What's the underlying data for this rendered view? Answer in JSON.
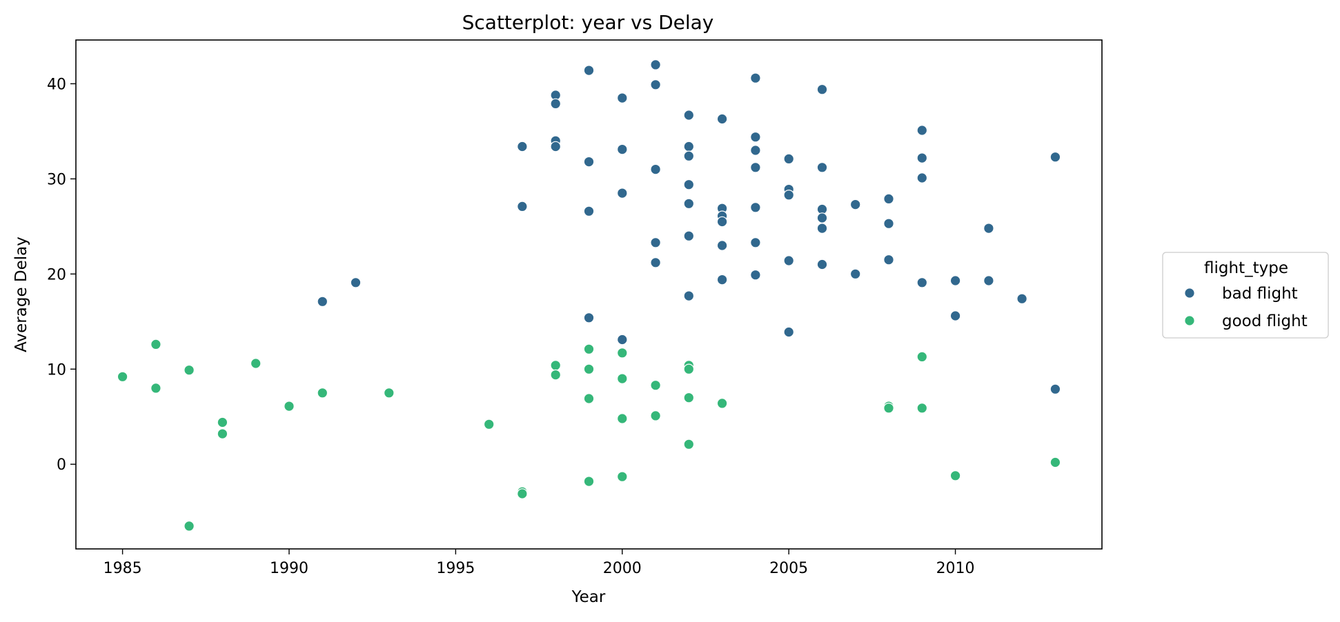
{
  "chart_data": {
    "type": "scatter",
    "title": "Scatterplot: year vs Delay",
    "xlabel": "Year",
    "ylabel": "Average Delay",
    "xlim": [
      1983.6,
      2014.4
    ],
    "ylim": [
      -8.9,
      44.6
    ],
    "xticks": [
      1985,
      1990,
      1995,
      2000,
      2005,
      2010
    ],
    "yticks": [
      0,
      10,
      20,
      30,
      40
    ],
    "grid": false,
    "legend": {
      "title": "flight_type",
      "placement": "right"
    },
    "series": [
      {
        "name": "bad flight",
        "color": "#31688e",
        "points": [
          [
            1991,
            17.1
          ],
          [
            1992,
            19.1
          ],
          [
            1997,
            33.4
          ],
          [
            1997,
            27.1
          ],
          [
            1998,
            38.8
          ],
          [
            1998,
            37.9
          ],
          [
            1998,
            34.0
          ],
          [
            1998,
            33.4
          ],
          [
            1999,
            41.4
          ],
          [
            1999,
            31.8
          ],
          [
            1999,
            26.6
          ],
          [
            1999,
            15.4
          ],
          [
            2000,
            38.5
          ],
          [
            2000,
            33.1
          ],
          [
            2000,
            28.5
          ],
          [
            2000,
            13.1
          ],
          [
            2001,
            42.0
          ],
          [
            2001,
            39.9
          ],
          [
            2001,
            31.0
          ],
          [
            2001,
            23.3
          ],
          [
            2001,
            21.2
          ],
          [
            2002,
            36.7
          ],
          [
            2002,
            33.4
          ],
          [
            2002,
            32.4
          ],
          [
            2002,
            29.4
          ],
          [
            2002,
            27.4
          ],
          [
            2002,
            24.0
          ],
          [
            2002,
            17.7
          ],
          [
            2003,
            36.3
          ],
          [
            2003,
            26.9
          ],
          [
            2003,
            26.1
          ],
          [
            2003,
            25.5
          ],
          [
            2003,
            23.0
          ],
          [
            2003,
            19.4
          ],
          [
            2004,
            40.6
          ],
          [
            2004,
            34.4
          ],
          [
            2004,
            33.0
          ],
          [
            2004,
            31.2
          ],
          [
            2004,
            27.0
          ],
          [
            2004,
            23.3
          ],
          [
            2004,
            19.9
          ],
          [
            2005,
            32.1
          ],
          [
            2005,
            28.9
          ],
          [
            2005,
            28.3
          ],
          [
            2005,
            21.4
          ],
          [
            2005,
            13.9
          ],
          [
            2006,
            39.4
          ],
          [
            2006,
            31.2
          ],
          [
            2006,
            26.8
          ],
          [
            2006,
            25.9
          ],
          [
            2006,
            24.8
          ],
          [
            2006,
            21.0
          ],
          [
            2007,
            27.3
          ],
          [
            2007,
            20.0
          ],
          [
            2008,
            27.9
          ],
          [
            2008,
            25.3
          ],
          [
            2008,
            21.5
          ],
          [
            2009,
            35.1
          ],
          [
            2009,
            32.2
          ],
          [
            2009,
            30.1
          ],
          [
            2009,
            19.1
          ],
          [
            2010,
            19.3
          ],
          [
            2010,
            15.6
          ],
          [
            2011,
            24.8
          ],
          [
            2011,
            19.3
          ],
          [
            2012,
            17.4
          ],
          [
            2013,
            32.3
          ],
          [
            2013,
            7.9
          ]
        ]
      },
      {
        "name": "good flight",
        "color": "#35b779",
        "points": [
          [
            1985,
            9.2
          ],
          [
            1986,
            12.6
          ],
          [
            1986,
            8.0
          ],
          [
            1987,
            9.9
          ],
          [
            1987,
            -6.5
          ],
          [
            1988,
            4.4
          ],
          [
            1988,
            3.2
          ],
          [
            1989,
            10.6
          ],
          [
            1990,
            6.1
          ],
          [
            1991,
            7.5
          ],
          [
            1993,
            7.5
          ],
          [
            1996,
            4.2
          ],
          [
            1997,
            -2.9
          ],
          [
            1997,
            -3.1
          ],
          [
            1998,
            10.4
          ],
          [
            1998,
            9.4
          ],
          [
            1999,
            12.1
          ],
          [
            1999,
            10.0
          ],
          [
            1999,
            6.9
          ],
          [
            1999,
            -1.8
          ],
          [
            2000,
            11.7
          ],
          [
            2000,
            9.0
          ],
          [
            2000,
            4.8
          ],
          [
            2000,
            -1.3
          ],
          [
            2001,
            8.3
          ],
          [
            2001,
            5.1
          ],
          [
            2002,
            10.4
          ],
          [
            2002,
            10.0
          ],
          [
            2002,
            7.0
          ],
          [
            2002,
            2.1
          ],
          [
            2003,
            6.4
          ],
          [
            2008,
            6.1
          ],
          [
            2008,
            5.9
          ],
          [
            2009,
            11.3
          ],
          [
            2009,
            5.9
          ],
          [
            2010,
            -1.2
          ],
          [
            2013,
            0.2
          ]
        ]
      }
    ]
  }
}
